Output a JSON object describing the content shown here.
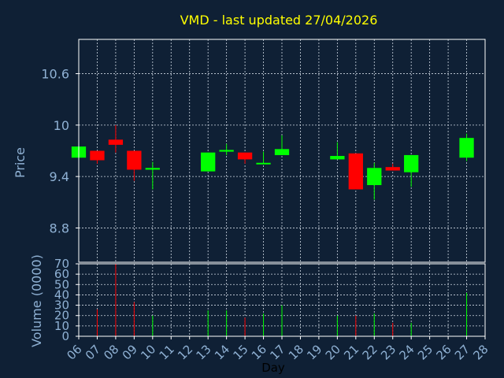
{
  "colors": {
    "background": "#0f2035",
    "title": "#ffff00",
    "axis_text": "#8fb1d4",
    "frame": "#ffffff",
    "grid": "#cfd8e3",
    "up": "#00ff00",
    "down": "#ff0000"
  },
  "chart_data": [
    {
      "type": "candlestick",
      "title": "VMD - last updated 27/04/2026",
      "ylabel": "Price",
      "ylim": [
        8.4,
        11.0
      ],
      "yticks": [
        "10.6",
        "10",
        "9.4",
        "8.8"
      ],
      "ytick_values": [
        10.6,
        10.0,
        9.4,
        8.8
      ],
      "grid": true,
      "candles": [
        {
          "day": "06",
          "open": 9.62,
          "close": 9.75,
          "high": 9.75,
          "low": 9.62
        },
        {
          "day": "07",
          "open": 9.7,
          "close": 9.59,
          "high": 9.7,
          "low": 9.55
        },
        {
          "day": "08",
          "open": 9.83,
          "close": 9.77,
          "high": 10.0,
          "low": 9.68
        },
        {
          "day": "09",
          "open": 9.7,
          "close": 9.48,
          "high": 9.7,
          "low": 9.35
        },
        {
          "day": "10",
          "open": 9.48,
          "close": 9.5,
          "high": 9.57,
          "low": 9.25
        },
        {
          "day": "13",
          "open": 9.46,
          "close": 9.68,
          "high": 9.68,
          "low": 9.46
        },
        {
          "day": "14",
          "open": 9.69,
          "close": 9.71,
          "high": 9.78,
          "low": 9.65
        },
        {
          "day": "15",
          "open": 9.68,
          "close": 9.6,
          "high": 9.68,
          "low": 9.55
        },
        {
          "day": "16",
          "open": 9.55,
          "close": 9.56,
          "high": 9.69,
          "low": 9.55
        },
        {
          "day": "17",
          "open": 9.65,
          "close": 9.72,
          "high": 9.88,
          "low": 9.65
        },
        {
          "day": "20",
          "open": 9.6,
          "close": 9.64,
          "high": 9.8,
          "low": 9.6
        },
        {
          "day": "21",
          "open": 9.67,
          "close": 9.25,
          "high": 9.67,
          "low": 9.25
        },
        {
          "day": "22",
          "open": 9.3,
          "close": 9.5,
          "high": 9.56,
          "low": 9.13
        },
        {
          "day": "23",
          "open": 9.51,
          "close": 9.47,
          "high": 9.55,
          "low": 9.47
        },
        {
          "day": "24",
          "open": 9.45,
          "close": 9.65,
          "high": 9.65,
          "low": 9.28
        },
        {
          "day": "27",
          "open": 9.62,
          "close": 9.85,
          "high": 9.9,
          "low": 9.58
        }
      ]
    },
    {
      "type": "bar",
      "ylabel": "Volume (0000)",
      "xlabel": "Day",
      "ylim": [
        0,
        70
      ],
      "yticks": [
        "70",
        "60",
        "50",
        "40",
        "30",
        "20",
        "10",
        "0"
      ],
      "ytick_values": [
        70,
        60,
        50,
        40,
        30,
        20,
        10,
        0
      ],
      "categories": [
        "06",
        "07",
        "08",
        "09",
        "10",
        "11",
        "12",
        "13",
        "14",
        "15",
        "16",
        "17",
        "18",
        "19",
        "20",
        "21",
        "22",
        "23",
        "24",
        "25",
        "26",
        "27",
        "28"
      ],
      "bars": [
        {
          "day": "06",
          "value": 0,
          "direction": "up"
        },
        {
          "day": "07",
          "value": 26,
          "direction": "down"
        },
        {
          "day": "08",
          "value": 70,
          "direction": "down"
        },
        {
          "day": "09",
          "value": 33,
          "direction": "down"
        },
        {
          "day": "10",
          "value": 20,
          "direction": "up"
        },
        {
          "day": "13",
          "value": 25,
          "direction": "up"
        },
        {
          "day": "14",
          "value": 25,
          "direction": "up"
        },
        {
          "day": "15",
          "value": 18,
          "direction": "down"
        },
        {
          "day": "16",
          "value": 22,
          "direction": "up"
        },
        {
          "day": "17",
          "value": 30,
          "direction": "up"
        },
        {
          "day": "20",
          "value": 20,
          "direction": "up"
        },
        {
          "day": "21",
          "value": 20,
          "direction": "down"
        },
        {
          "day": "22",
          "value": 22,
          "direction": "up"
        },
        {
          "day": "23",
          "value": 13,
          "direction": "down"
        },
        {
          "day": "24",
          "value": 13,
          "direction": "up"
        },
        {
          "day": "27",
          "value": 42,
          "direction": "up"
        }
      ]
    }
  ]
}
